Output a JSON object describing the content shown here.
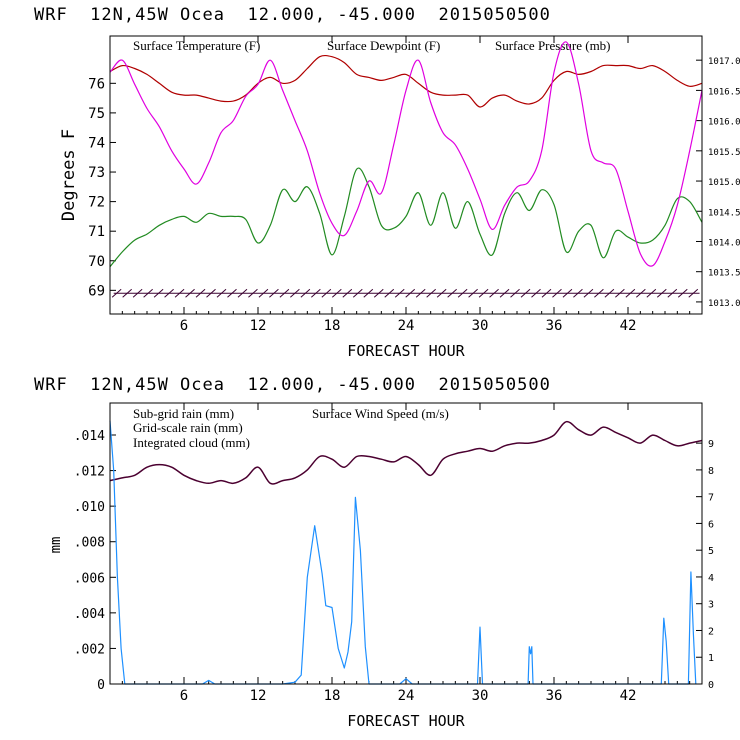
{
  "colors": {
    "temperature": "#b00000",
    "dewpoint": "#228b22",
    "pressure": "#e000e0",
    "wind_speed": "#4b0030",
    "sub_grid_rain": "#b00000",
    "grid_scale_rain": "#228b22",
    "integrated_cloud": "#1e90ff",
    "wind_barbs": "#3a0030",
    "axis": "#000000"
  },
  "chart_data": [
    {
      "type": "line",
      "title": "WRF  12N,45W Ocea  12.000, -45.000  2015050500",
      "xlabel": "FORECAST HOUR",
      "ylabel": "Degrees F",
      "xlim": [
        0,
        48
      ],
      "ylim": [
        68.2,
        77.6
      ],
      "y2lim": [
        1012.8,
        1017.4
      ],
      "xticks": [
        "6",
        "12",
        "18",
        "24",
        "30",
        "36",
        "42"
      ],
      "yticks": [
        "69",
        "70",
        "71",
        "72",
        "73",
        "74",
        "75",
        "76"
      ],
      "y2ticks": [
        "1013.0",
        "1013.5",
        "1014.0",
        "1014.5",
        "1015.0",
        "1015.5",
        "1016.0",
        "1016.5",
        "1017.0"
      ],
      "legend": [
        "Surface Temperature (F)",
        "Surface Dewpoint (F)",
        "Surface Pressure (mb)"
      ],
      "legend_position": "top",
      "wind_barbs": "along y = 68.9",
      "series": [
        {
          "name": "Surface Temperature (F)",
          "axis": "left",
          "x": [
            0,
            1,
            2,
            3,
            4,
            5,
            6,
            7,
            8,
            9,
            10,
            11,
            12,
            13,
            14,
            15,
            16,
            17,
            18,
            19,
            20,
            21,
            22,
            23,
            24,
            25,
            26,
            27,
            28,
            29,
            30,
            31,
            32,
            33,
            34,
            35,
            36,
            37,
            38,
            39,
            40,
            41,
            42,
            43,
            44,
            45,
            46,
            47,
            48
          ],
          "values": [
            76.4,
            76.6,
            76.5,
            76.3,
            76.0,
            75.7,
            75.6,
            75.6,
            75.5,
            75.4,
            75.4,
            75.6,
            76.0,
            76.2,
            76.0,
            76.1,
            76.5,
            76.9,
            76.9,
            76.7,
            76.3,
            76.2,
            76.1,
            76.2,
            76.3,
            76.0,
            75.7,
            75.6,
            75.6,
            75.6,
            75.2,
            75.5,
            75.6,
            75.4,
            75.3,
            75.5,
            76.1,
            76.4,
            76.3,
            76.4,
            76.6,
            76.6,
            76.6,
            76.5,
            76.6,
            76.4,
            76.1,
            75.9,
            76.0
          ]
        },
        {
          "name": "Surface Dewpoint (F)",
          "axis": "left",
          "x": [
            0,
            1,
            2,
            3,
            4,
            5,
            6,
            7,
            8,
            9,
            10,
            11,
            12,
            13,
            14,
            15,
            16,
            17,
            18,
            19,
            20,
            21,
            22,
            23,
            24,
            25,
            26,
            27,
            28,
            29,
            30,
            31,
            32,
            33,
            34,
            35,
            36,
            37,
            38,
            39,
            40,
            41,
            42,
            43,
            44,
            45,
            46,
            47,
            48
          ],
          "values": [
            69.8,
            70.3,
            70.7,
            70.9,
            71.2,
            71.4,
            71.5,
            71.3,
            71.6,
            71.5,
            71.5,
            71.4,
            70.6,
            71.2,
            72.4,
            72.0,
            72.5,
            71.6,
            70.2,
            71.5,
            73.1,
            72.5,
            71.2,
            71.1,
            71.5,
            72.3,
            71.2,
            72.3,
            71.1,
            72.0,
            70.9,
            70.2,
            71.6,
            72.3,
            71.7,
            72.4,
            71.9,
            70.3,
            71.0,
            71.2,
            70.1,
            71.0,
            70.8,
            70.6,
            70.7,
            71.2,
            72.1,
            72.0,
            71.3
          ]
        },
        {
          "name": "Surface Pressure (mb)",
          "axis": "right",
          "x": [
            0,
            1,
            2,
            3,
            4,
            5,
            6,
            7,
            8,
            9,
            10,
            11,
            12,
            13,
            14,
            15,
            16,
            17,
            18,
            19,
            20,
            21,
            22,
            23,
            24,
            25,
            26,
            27,
            28,
            29,
            30,
            31,
            32,
            33,
            34,
            35,
            36,
            37,
            38,
            39,
            40,
            41,
            42,
            43,
            44,
            45,
            46,
            47,
            48
          ],
          "values": [
            1016.8,
            1017.0,
            1016.6,
            1016.2,
            1015.9,
            1015.5,
            1015.2,
            1014.95,
            1015.3,
            1015.8,
            1016.0,
            1016.4,
            1016.6,
            1017.0,
            1016.5,
            1016.0,
            1015.5,
            1014.8,
            1014.3,
            1014.1,
            1014.5,
            1015.0,
            1014.8,
            1015.6,
            1016.5,
            1017.0,
            1016.3,
            1015.8,
            1015.6,
            1015.2,
            1014.7,
            1014.2,
            1014.6,
            1014.9,
            1015.0,
            1015.5,
            1016.8,
            1017.3,
            1016.6,
            1015.5,
            1015.3,
            1015.2,
            1014.5,
            1013.8,
            1013.6,
            1014.0,
            1014.6,
            1015.5,
            1016.5
          ]
        }
      ]
    },
    {
      "type": "line",
      "title": "WRF  12N,45W Ocea  12.000, -45.000  2015050500",
      "xlabel": "FORECAST HOUR",
      "ylabel": "mm",
      "xlim": [
        0,
        48
      ],
      "ylim": [
        0,
        0.0158
      ],
      "y2lim": [
        0,
        10.5
      ],
      "xticks": [
        "6",
        "12",
        "18",
        "24",
        "30",
        "36",
        "42"
      ],
      "yticks": [
        "0",
        ".002",
        ".004",
        ".006",
        ".008",
        ".010",
        ".012",
        ".014"
      ],
      "y2ticks": [
        "0",
        "1",
        "2",
        "3",
        "4",
        "5",
        "6",
        "7",
        "8",
        "9"
      ],
      "legend": [
        "Sub-grid rain (mm)",
        "Grid-scale rain (mm)",
        "Integrated cloud (mm)",
        "Surface Wind Speed (m/s)"
      ],
      "legend_position": "top-left",
      "series": [
        {
          "name": "Surface Wind Speed (m/s)",
          "axis": "right",
          "x": [
            0,
            1,
            2,
            3,
            4,
            5,
            6,
            7,
            8,
            9,
            10,
            11,
            12,
            13,
            14,
            15,
            16,
            17,
            18,
            19,
            20,
            21,
            22,
            23,
            24,
            25,
            26,
            27,
            28,
            29,
            30,
            31,
            32,
            33,
            34,
            35,
            36,
            37,
            38,
            39,
            40,
            41,
            42,
            43,
            44,
            45,
            46,
            47,
            48
          ],
          "values": [
            7.6,
            7.7,
            7.8,
            8.1,
            8.2,
            8.1,
            7.8,
            7.6,
            7.5,
            7.6,
            7.5,
            7.7,
            8.1,
            7.5,
            7.6,
            7.7,
            8.0,
            8.5,
            8.4,
            8.1,
            8.5,
            8.5,
            8.4,
            8.3,
            8.5,
            8.2,
            7.8,
            8.4,
            8.6,
            8.7,
            8.8,
            8.7,
            8.9,
            9.0,
            9.0,
            9.1,
            9.3,
            9.8,
            9.5,
            9.3,
            9.6,
            9.4,
            9.2,
            9.0,
            9.3,
            9.1,
            8.9,
            9.0,
            9.1
          ]
        },
        {
          "name": "Integrated cloud (mm)",
          "axis": "left",
          "x": [
            0,
            0.3,
            0.6,
            0.9,
            1.2,
            7.5,
            8.0,
            8.5,
            14.0,
            15.0,
            15.5,
            16.0,
            16.6,
            17.2,
            17.5,
            18.0,
            18.5,
            19.0,
            19.3,
            19.6,
            19.9,
            20.3,
            20.7,
            21.0,
            23.5,
            24.0,
            24.5,
            29.8,
            30.0,
            30.2,
            33.9,
            34.0,
            34.1,
            34.2,
            34.3,
            44.7,
            44.9,
            45.1,
            45.3,
            46.9,
            47.1,
            47.3,
            47.5
          ],
          "values": [
            0.0148,
            0.012,
            0.006,
            0.002,
            0.0,
            0.0,
            0.0002,
            0.0,
            0.0,
            0.0001,
            0.0005,
            0.006,
            0.0089,
            0.0062,
            0.0044,
            0.0043,
            0.002,
            0.0009,
            0.0018,
            0.0035,
            0.0105,
            0.0075,
            0.0021,
            0.0,
            0.0,
            0.0003,
            0.0,
            0.0,
            0.0032,
            0.0,
            0.0,
            0.0021,
            0.0017,
            0.0021,
            0.0,
            0.0,
            0.0037,
            0.0024,
            0.0,
            0.0,
            0.0063,
            0.0028,
            0.0
          ]
        }
      ]
    }
  ]
}
